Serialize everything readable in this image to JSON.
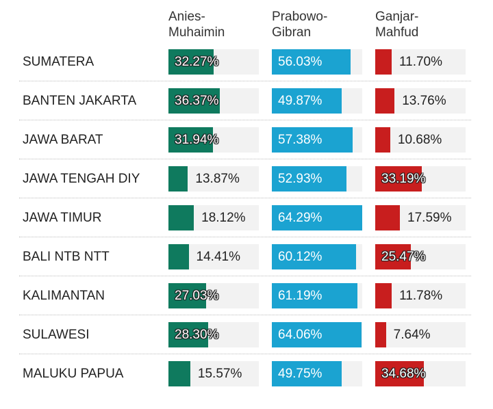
{
  "chart_data": {
    "type": "table",
    "columns": [
      "Anies-\nMuhaimin",
      "Prabowo-\nGibran",
      "Ganjar-\nMahfud"
    ],
    "colors": [
      "#0f7a5e",
      "#1ba3d1",
      "#c81e1e"
    ],
    "track_color": "#f2f2f2",
    "rows": [
      {
        "label": "SUMATERA",
        "values": [
          32.27,
          56.03,
          11.7
        ],
        "labels": [
          "32.27%",
          "56.03%",
          "11.70%"
        ]
      },
      {
        "label": "BANTEN JAKARTA",
        "values": [
          36.37,
          49.87,
          13.76
        ],
        "labels": [
          "36.37%",
          "49.87%",
          "13.76%"
        ]
      },
      {
        "label": "JAWA BARAT",
        "values": [
          31.94,
          57.38,
          10.68
        ],
        "labels": [
          "31.94%",
          "57.38%",
          "10.68%"
        ]
      },
      {
        "label": "JAWA TENGAH DIY",
        "values": [
          13.87,
          52.93,
          33.19
        ],
        "labels": [
          "13.87%",
          "52.93%",
          "33.19%"
        ]
      },
      {
        "label": "JAWA TIMUR",
        "values": [
          18.12,
          64.29,
          17.59
        ],
        "labels": [
          "18.12%",
          "64.29%",
          "17.59%"
        ]
      },
      {
        "label": "BALI NTB NTT",
        "values": [
          14.41,
          60.12,
          25.47
        ],
        "labels": [
          "14.41%",
          "60.12%",
          "25.47%"
        ]
      },
      {
        "label": "KALIMANTAN",
        "values": [
          27.03,
          61.19,
          11.78
        ],
        "labels": [
          "27.03%",
          "61.19%",
          "11.78%"
        ]
      },
      {
        "label": "SULAWESI",
        "values": [
          28.3,
          64.06,
          7.64
        ],
        "labels": [
          "28.30%",
          "64.06%",
          "7.64%"
        ]
      },
      {
        "label": "MALUKU PAPUA",
        "values": [
          15.57,
          49.75,
          34.68
        ],
        "labels": [
          "15.57%",
          "49.75%",
          "34.68%"
        ]
      }
    ]
  }
}
